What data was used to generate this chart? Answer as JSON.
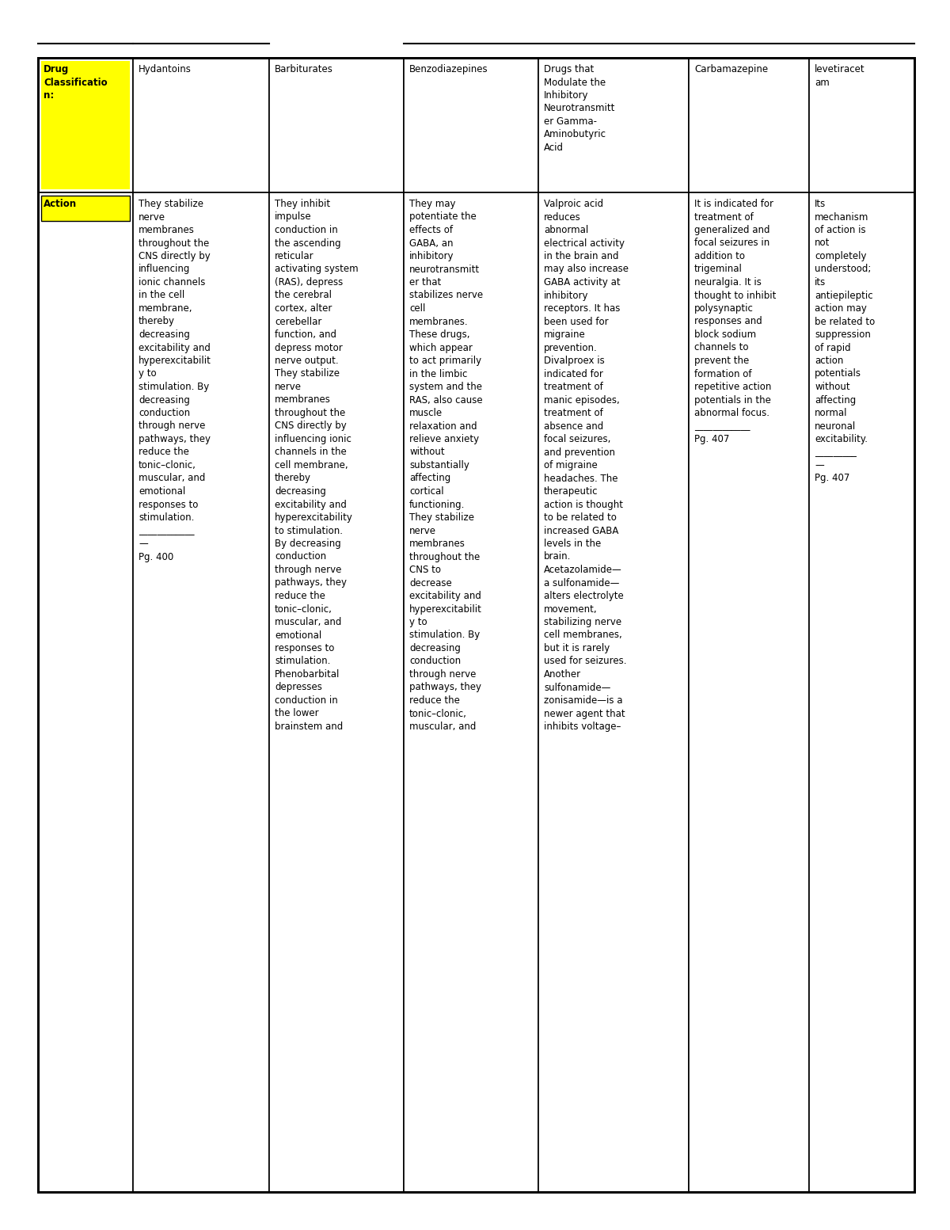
{
  "background_color": "#ffffff",
  "line_color": "#000000",
  "highlight_color": "#ffff00",
  "col_headers": [
    "Hydantoins",
    "Barbiturates",
    "Benzodiazepines",
    "Drugs that\nModulate the\nInhibitory\nNeurotransmitt\ner Gamma-\nAminobutyric\nAcid",
    "Carbamazepine",
    "levetiracet\nam"
  ],
  "row_label_0": "Drug\nClassificatio\nn:",
  "row_label_1": "Action",
  "action_texts": [
    "They stabilize\nnerve\nmembranes\nthroughout the\nCNS directly by\ninfluencing\nionic channels\nin the cell\nmembrane,\nthereby\ndecreasing\nexcitability and\nhyperexcitabilit\ny to\nstimulation. By\ndecreasing\nconduction\nthrough nerve\npathways, they\nreduce the\ntonic–clonic,\nmuscular, and\nemotional\nresponses to\nstimulation.\n____________\n—\nPg. 400",
    "They inhibit\nimpulse\nconduction in\nthe ascending\nreticular\nactivating system\n(RAS), depress\nthe cerebral\ncortex, alter\ncerebellar\nfunction, and\ndepress motor\nnerve output.\nThey stabilize\nnerve\nmembranes\nthroughout the\nCNS directly by\ninfluencing ionic\nchannels in the\ncell membrane,\nthereby\ndecreasing\nexcitability and\nhyperexcitability\nto stimulation.\nBy decreasing\nconduction\nthrough nerve\npathways, they\nreduce the\ntonic–clonic,\nmuscular, and\nemotional\nresponses to\nstimulation.\nPhenobarbital\ndepresses\nconduction in\nthe lower\nbrainstem and",
    "They may\npotentiate the\neffects of\nGABA, an\ninhibitory\nneurotransmitt\ner that\nstabilizes nerve\ncell\nmembranes.\nThese drugs,\nwhich appear\nto act primarily\nin the limbic\nsystem and the\nRAS, also cause\nmuscle\nrelaxation and\nrelieve anxiety\nwithout\nsubstantially\naffecting\ncortical\nfunctioning.\nThey stabilize\nnerve\nmembranes\nthroughout the\nCNS to\ndecrease\nexcitability and\nhyperexcitabilit\ny to\nstimulation. By\ndecreasing\nconduction\nthrough nerve\npathways, they\nreduce the\ntonic–clonic,\nmuscular, and",
    "Valproic acid\nreduces\nabnormal\nelectrical activity\nin the brain and\nmay also increase\nGABA activity at\ninhibitory\nreceptors. It has\nbeen used for\nmigraine\nprevention.\nDivalproex is\nindicated for\ntreatment of\nmanic episodes,\ntreatment of\nabsence and\nfocal seizures,\nand prevention\nof migraine\nheadaches. The\ntherapeutic\naction is thought\nto be related to\nincreased GABA\nlevels in the\nbrain.\nAcetazolamide—\na sulfonamide—\nalters electrolyte\nmovement,\nstabilizing nerve\ncell membranes,\nbut it is rarely\nused for seizures.\nAnother\nsulfonamide—\nzonisamide—is a\nnewer agent that\ninhibits voltage–",
    "It is indicated for\ntreatment of\ngeneralized and\nfocal seizures in\naddition to\ntrigeminal\nneuralgia. It is\nthought to inhibit\npolysynaptic\nresponses and\nblock sodium\nchannels to\nprevent the\nformation of\nrepetitive action\npotentials in the\nabnormal focus.\n____________\nPg. 407",
    "Its\nmechanism\nof action is\nnot\ncompletely\nunderstood;\nits\nantiepileptic\naction may\nbe related to\nsuppression\nof rapid\naction\npotentials\nwithout\naffecting\nnormal\nneuronal\nexcitability.\n_________\n—\nPg. 407"
  ],
  "font_size": 8.5,
  "bold_font_size": 8.5
}
